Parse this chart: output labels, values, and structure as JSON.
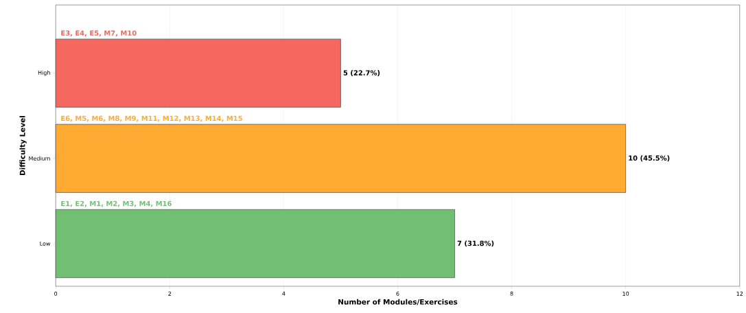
{
  "chart_data": {
    "type": "bar",
    "orientation": "horizontal",
    "xlabel": "Number of Modules/Exercises",
    "ylabel": "Difficulty Level",
    "categories": [
      "High",
      "Medium",
      "Low"
    ],
    "values": [
      5,
      10,
      7
    ],
    "colors": [
      "#f4685f",
      "#ffaa33",
      "#72bf74"
    ],
    "value_labels": [
      "5 (22.7%)",
      "10 (45.5%)",
      "7 (31.8%)"
    ],
    "annotations": [
      "E3, E4, E5, M7, M10",
      "E6, M5, M6, M8, M9, M11, M12, M13, M14, M15",
      "E1, E2, M1, M2, M3, M4, M16"
    ],
    "xlim": [
      0,
      12
    ],
    "xticks": [
      0,
      2,
      4,
      6,
      8,
      10,
      12
    ],
    "grid": "x"
  }
}
